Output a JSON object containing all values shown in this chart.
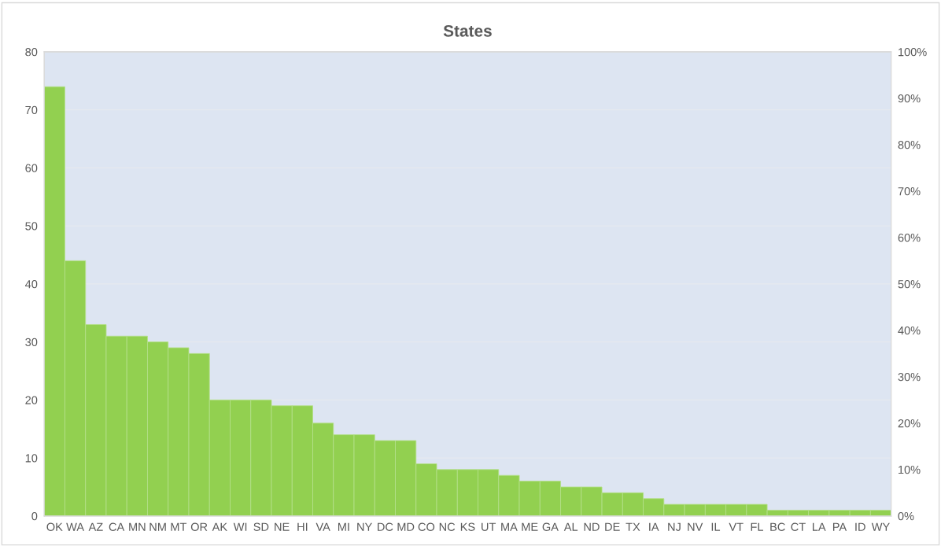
{
  "chart_data": {
    "type": "bar",
    "title": "States",
    "categories": [
      "OK",
      "WA",
      "AZ",
      "CA",
      "MN",
      "NM",
      "MT",
      "OR",
      "AK",
      "WI",
      "SD",
      "NE",
      "HI",
      "VA",
      "MI",
      "NY",
      "DC",
      "MD",
      "CO",
      "NC",
      "KS",
      "UT",
      "MA",
      "ME",
      "GA",
      "AL",
      "ND",
      "DE",
      "TX",
      "IA",
      "NJ",
      "NV",
      "IL",
      "VT",
      "FL",
      "BC",
      "CT",
      "LA",
      "PA",
      "ID",
      "WY"
    ],
    "values": [
      74,
      44,
      33,
      31,
      31,
      30,
      29,
      28,
      20,
      20,
      20,
      19,
      19,
      16,
      14,
      14,
      13,
      13,
      9,
      8,
      8,
      8,
      7,
      6,
      6,
      5,
      5,
      4,
      4,
      3,
      2,
      2,
      2,
      2,
      2,
      1,
      1,
      1,
      1,
      1,
      1
    ],
    "color": "#92d050",
    "ylim": [
      0,
      80
    ],
    "yticks": [
      0,
      10,
      20,
      30,
      40,
      50,
      60,
      70,
      80
    ],
    "y2lim": [
      0,
      100
    ],
    "y2ticks": [
      {
        "value": 0,
        "label": "0%"
      },
      {
        "value": 10,
        "label": "10%"
      },
      {
        "value": 20,
        "label": "20%"
      },
      {
        "value": 30,
        "label": "30%"
      },
      {
        "value": 40,
        "label": "40%"
      },
      {
        "value": 50,
        "label": "50%"
      },
      {
        "value": 60,
        "label": "60%"
      },
      {
        "value": 70,
        "label": "70%"
      },
      {
        "value": 80,
        "label": "80%"
      },
      {
        "value": 90,
        "label": "90%"
      },
      {
        "value": 100,
        "label": "100%"
      }
    ],
    "grid": "y"
  }
}
